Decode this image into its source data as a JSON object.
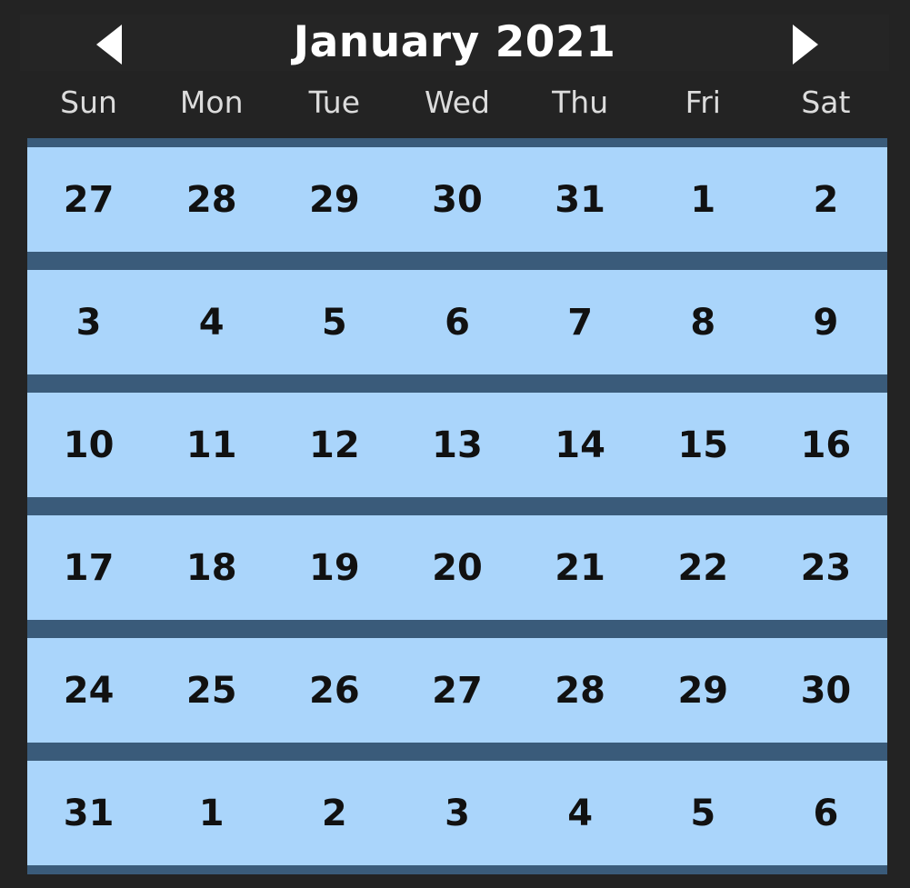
{
  "header": {
    "title": "January 2021",
    "prev_icon": "triangle-left-icon",
    "next_icon": "triangle-right-icon"
  },
  "weekdays": [
    "Sun",
    "Mon",
    "Tue",
    "Wed",
    "Thu",
    "Fri",
    "Sat"
  ],
  "weeks": [
    [
      "27",
      "28",
      "29",
      "30",
      "31",
      "1",
      "2"
    ],
    [
      "3",
      "4",
      "5",
      "6",
      "7",
      "8",
      "9"
    ],
    [
      "10",
      "11",
      "12",
      "13",
      "14",
      "15",
      "16"
    ],
    [
      "17",
      "18",
      "19",
      "20",
      "21",
      "22",
      "23"
    ],
    [
      "24",
      "25",
      "26",
      "27",
      "28",
      "29",
      "30"
    ],
    [
      "31",
      "1",
      "2",
      "3",
      "4",
      "5",
      "6"
    ]
  ],
  "colors": {
    "background": "#232323",
    "row_divider": "#3a5b7a",
    "day_cell": "#aad5fb",
    "day_text": "#111111",
    "header_text": "#ffffff",
    "weekday_text": "#dcdcdc"
  }
}
